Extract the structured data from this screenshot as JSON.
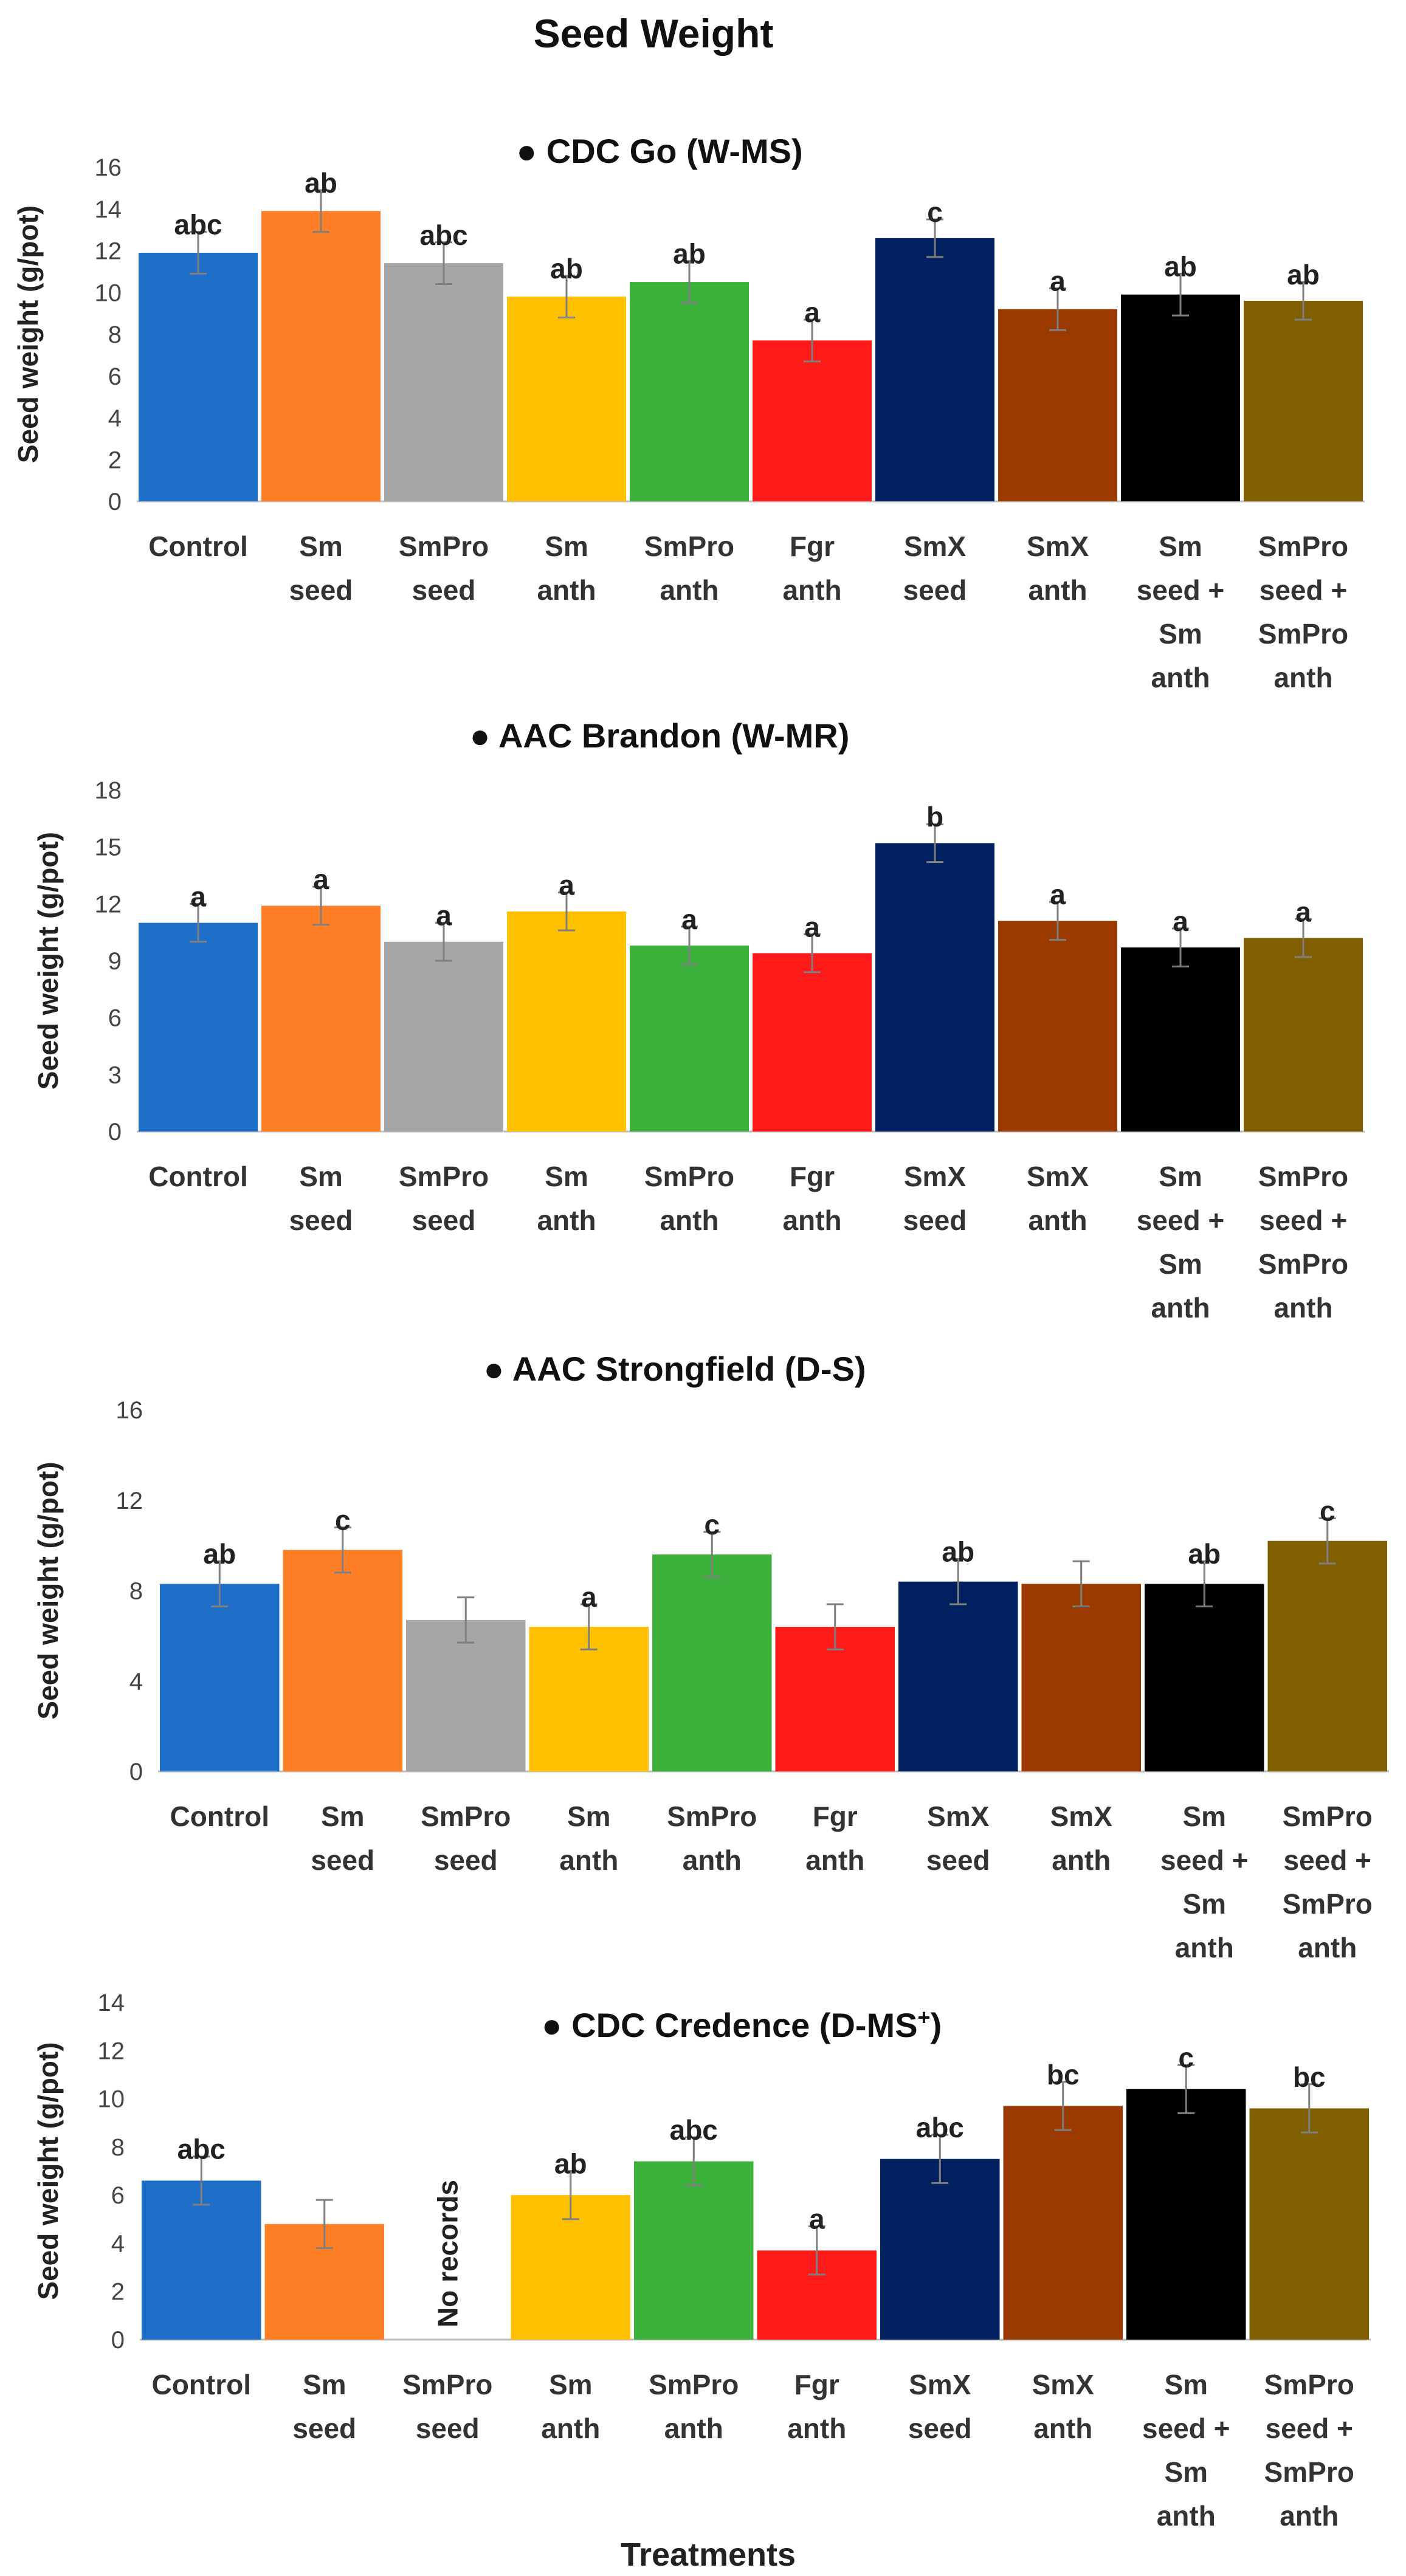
{
  "title": "Seed Weight",
  "xlabel": "Treatments",
  "colors": [
    "#1f6ec8",
    "#ff7f27",
    "#a6a6a6",
    "#ffc000",
    "#3cb23c",
    "#ff1a1a",
    "#002060",
    "#9b3a00",
    "#000000",
    "#7f5f00"
  ],
  "categories": [
    [
      "Control"
    ],
    [
      "Sm",
      "seed"
    ],
    [
      "SmPro",
      "seed"
    ],
    [
      "Sm",
      "anth"
    ],
    [
      "SmPro",
      "anth"
    ],
    [
      "Fgr",
      "anth"
    ],
    [
      "SmX",
      "seed"
    ],
    [
      "SmX",
      "anth"
    ],
    [
      "Sm",
      "seed +",
      "Sm",
      "anth"
    ],
    [
      "SmPro",
      "seed +",
      "SmPro",
      "anth"
    ]
  ],
  "chart_data": [
    {
      "type": "bar",
      "title": "CDC Go (W-MS)",
      "ylabel": "Seed weight (g/pot)",
      "ylim": [
        0,
        16
      ],
      "yticks": [
        0,
        2,
        4,
        6,
        8,
        10,
        12,
        14,
        16
      ],
      "values": [
        11.9,
        13.9,
        11.4,
        9.8,
        10.5,
        7.7,
        12.6,
        9.2,
        9.9,
        9.6
      ],
      "errors": [
        1.0,
        1.0,
        1.0,
        1.0,
        1.0,
        1.0,
        0.9,
        1.0,
        1.0,
        0.9
      ],
      "labels": [
        "abc",
        "ab",
        "abc",
        "ab",
        "ab",
        "a",
        "c",
        "a",
        "ab",
        "ab"
      ],
      "notes": [
        "",
        "",
        "",
        "",
        "",
        "",
        "",
        "",
        "",
        ""
      ]
    },
    {
      "type": "bar",
      "title": "AAC Brandon (W-MR)",
      "ylabel": "Seed weight (g/pot)",
      "ylim": [
        0,
        18
      ],
      "yticks": [
        0,
        3,
        6,
        9,
        12,
        15,
        18
      ],
      "values": [
        11.0,
        11.9,
        10.0,
        11.6,
        9.8,
        9.4,
        15.2,
        11.1,
        9.7,
        10.2
      ],
      "errors": [
        1.0,
        1.0,
        1.0,
        1.0,
        1.0,
        1.0,
        1.0,
        1.0,
        1.0,
        1.0
      ],
      "labels": [
        "a",
        "a",
        "a",
        "a",
        "a",
        "a",
        "b",
        "a",
        "a",
        "a"
      ],
      "notes": [
        "",
        "",
        "",
        "",
        "",
        "",
        "",
        "",
        "",
        ""
      ]
    },
    {
      "type": "bar",
      "title": "AAC Strongfield (D-S)",
      "ylabel": "Seed weight (g/pot)",
      "ylim": [
        0,
        16
      ],
      "yticks": [
        0,
        4,
        8,
        12,
        16
      ],
      "values": [
        8.3,
        9.8,
        6.7,
        6.4,
        9.6,
        6.4,
        8.4,
        8.3,
        8.3,
        10.2
      ],
      "errors": [
        1.0,
        1.0,
        1.0,
        1.0,
        1.0,
        1.0,
        1.0,
        1.0,
        1.0,
        1.0
      ],
      "labels": [
        "ab",
        "c",
        "",
        "a",
        "c",
        "",
        "ab",
        "",
        "ab",
        "c"
      ],
      "notes": [
        "",
        "",
        "",
        "",
        "",
        "",
        "",
        "",
        "",
        ""
      ]
    },
    {
      "type": "bar",
      "title": "CDC Credence (D-MS",
      "title_sup": "+",
      "title_end": ")",
      "ylabel": "Seed weight (g/pot)",
      "ylim": [
        0,
        14
      ],
      "yticks": [
        0,
        2,
        4,
        6,
        8,
        10,
        12,
        14
      ],
      "values": [
        6.6,
        4.8,
        null,
        6.0,
        7.4,
        3.7,
        7.5,
        9.7,
        10.4,
        9.6
      ],
      "errors": [
        1.0,
        1.0,
        0,
        1.0,
        1.0,
        1.0,
        1.0,
        1.0,
        1.0,
        1.0
      ],
      "labels": [
        "abc",
        "",
        "",
        "ab",
        "abc",
        "a",
        "abc",
        "bc",
        "c",
        "bc"
      ],
      "notes": [
        "",
        "",
        "No records",
        "",
        "",
        "",
        "",
        "",
        "",
        ""
      ]
    }
  ]
}
